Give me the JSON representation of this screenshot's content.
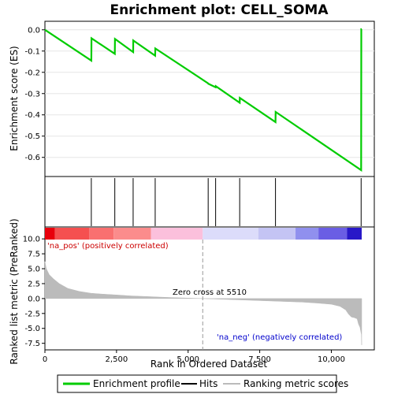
{
  "chart_data": {
    "type": "line",
    "title": "Enrichment plot: CELL_SOMA",
    "es_panel": {
      "ylabel": "Enrichment score (ES)",
      "ylim": [
        -0.69,
        0.04
      ],
      "yticks": [
        0.0,
        -0.1,
        -0.2,
        -0.3,
        -0.4,
        -0.5,
        -0.6
      ],
      "ytick_labels": [
        "0.0",
        "-0.1",
        "-0.2",
        "-0.3",
        "-0.4",
        "-0.5",
        "-0.6"
      ],
      "series": [
        {
          "name": "Enrichment profile",
          "color": "#00cc00",
          "x": [
            0,
            1620,
            1625,
            2440,
            2445,
            3080,
            3085,
            3850,
            3855,
            5700,
            5705,
            5960,
            5965,
            6800,
            6805,
            8050,
            8055,
            11040,
            11045,
            11060
          ],
          "y": [
            0.0,
            -0.145,
            -0.04,
            -0.113,
            -0.043,
            -0.105,
            -0.05,
            -0.122,
            -0.088,
            -0.252,
            -0.254,
            -0.27,
            -0.265,
            -0.343,
            -0.32,
            -0.434,
            -0.386,
            -0.66,
            0.003,
            0.003
          ]
        }
      ]
    },
    "hits": {
      "name": "Hits",
      "positions": [
        1620,
        2440,
        3080,
        3850,
        5700,
        5960,
        6800,
        8050,
        11040
      ]
    },
    "ranked_panel": {
      "name": "Ranking metric scores",
      "ylabel": "Ranked list metric (PreRanked)",
      "ylim": [
        -8.6,
        12
      ],
      "yticks": [
        10.0,
        7.5,
        5.0,
        2.5,
        0.0,
        -2.5,
        -5.0,
        -7.5
      ],
      "ytick_labels": [
        "10.0",
        "7.5",
        "5.0",
        "2.5",
        "0.0",
        "-2.5",
        "-5.0",
        "-7.5"
      ],
      "profile_x": [
        0,
        50,
        150,
        300,
        500,
        800,
        1200,
        1600,
        2000,
        2500,
        3000,
        3500,
        4000,
        4500,
        5000,
        5510,
        6000,
        7000,
        8000,
        9000,
        9500,
        10000,
        10300,
        10500,
        10600,
        10700,
        10800,
        10900,
        10950,
        11000,
        11050,
        11060
      ],
      "profile_y": [
        6.2,
        5.0,
        4.0,
        3.3,
        2.5,
        1.7,
        1.2,
        0.9,
        0.75,
        0.6,
        0.45,
        0.35,
        0.25,
        0.15,
        0.07,
        0.0,
        -0.08,
        -0.25,
        -0.42,
        -0.6,
        -0.75,
        -0.95,
        -1.3,
        -1.9,
        -2.6,
        -3.1,
        -3.2,
        -3.4,
        -4.3,
        -4.8,
        -6.0,
        -7.8
      ],
      "color": "#bbbbbb",
      "zero_cross": 5510,
      "zero_cross_label": "Zero cross at 5510",
      "pos_label": "'na_pos' (positively correlated)",
      "neg_label": "'na_neg' (negatively correlated)",
      "pos_color": "#cc0000",
      "neg_color": "#0000cc"
    },
    "xaxis": {
      "label": "Rank in Ordered Dataset",
      "xlim": [
        0,
        11500
      ],
      "ticks": [
        0,
        2500,
        5000,
        7500,
        10000
      ],
      "tick_labels": [
        "0",
        "2,500",
        "5,000",
        "7,500",
        "10,000"
      ]
    },
    "colorbar": {
      "segments": [
        {
          "end": 350,
          "color": "#e8000c"
        },
        {
          "end": 1550,
          "color": "#f55050"
        },
        {
          "end": 2400,
          "color": "#f97070"
        },
        {
          "end": 3700,
          "color": "#fb8c8c"
        },
        {
          "end": 5510,
          "color": "#fbc0dc"
        },
        {
          "end": 7450,
          "color": "#dcdcfa"
        },
        {
          "end": 8750,
          "color": "#c4c4f4"
        },
        {
          "end": 9550,
          "color": "#9090ee"
        },
        {
          "end": 10550,
          "color": "#6a5ee4"
        },
        {
          "end": 11060,
          "color": "#2818c8"
        }
      ]
    },
    "legend": {
      "items": [
        {
          "label": "Enrichment profile",
          "color": "#00cc00"
        },
        {
          "label": "Hits",
          "color": "#000000"
        },
        {
          "label": "Ranking metric scores",
          "color": "#bbbbbb"
        }
      ]
    }
  }
}
